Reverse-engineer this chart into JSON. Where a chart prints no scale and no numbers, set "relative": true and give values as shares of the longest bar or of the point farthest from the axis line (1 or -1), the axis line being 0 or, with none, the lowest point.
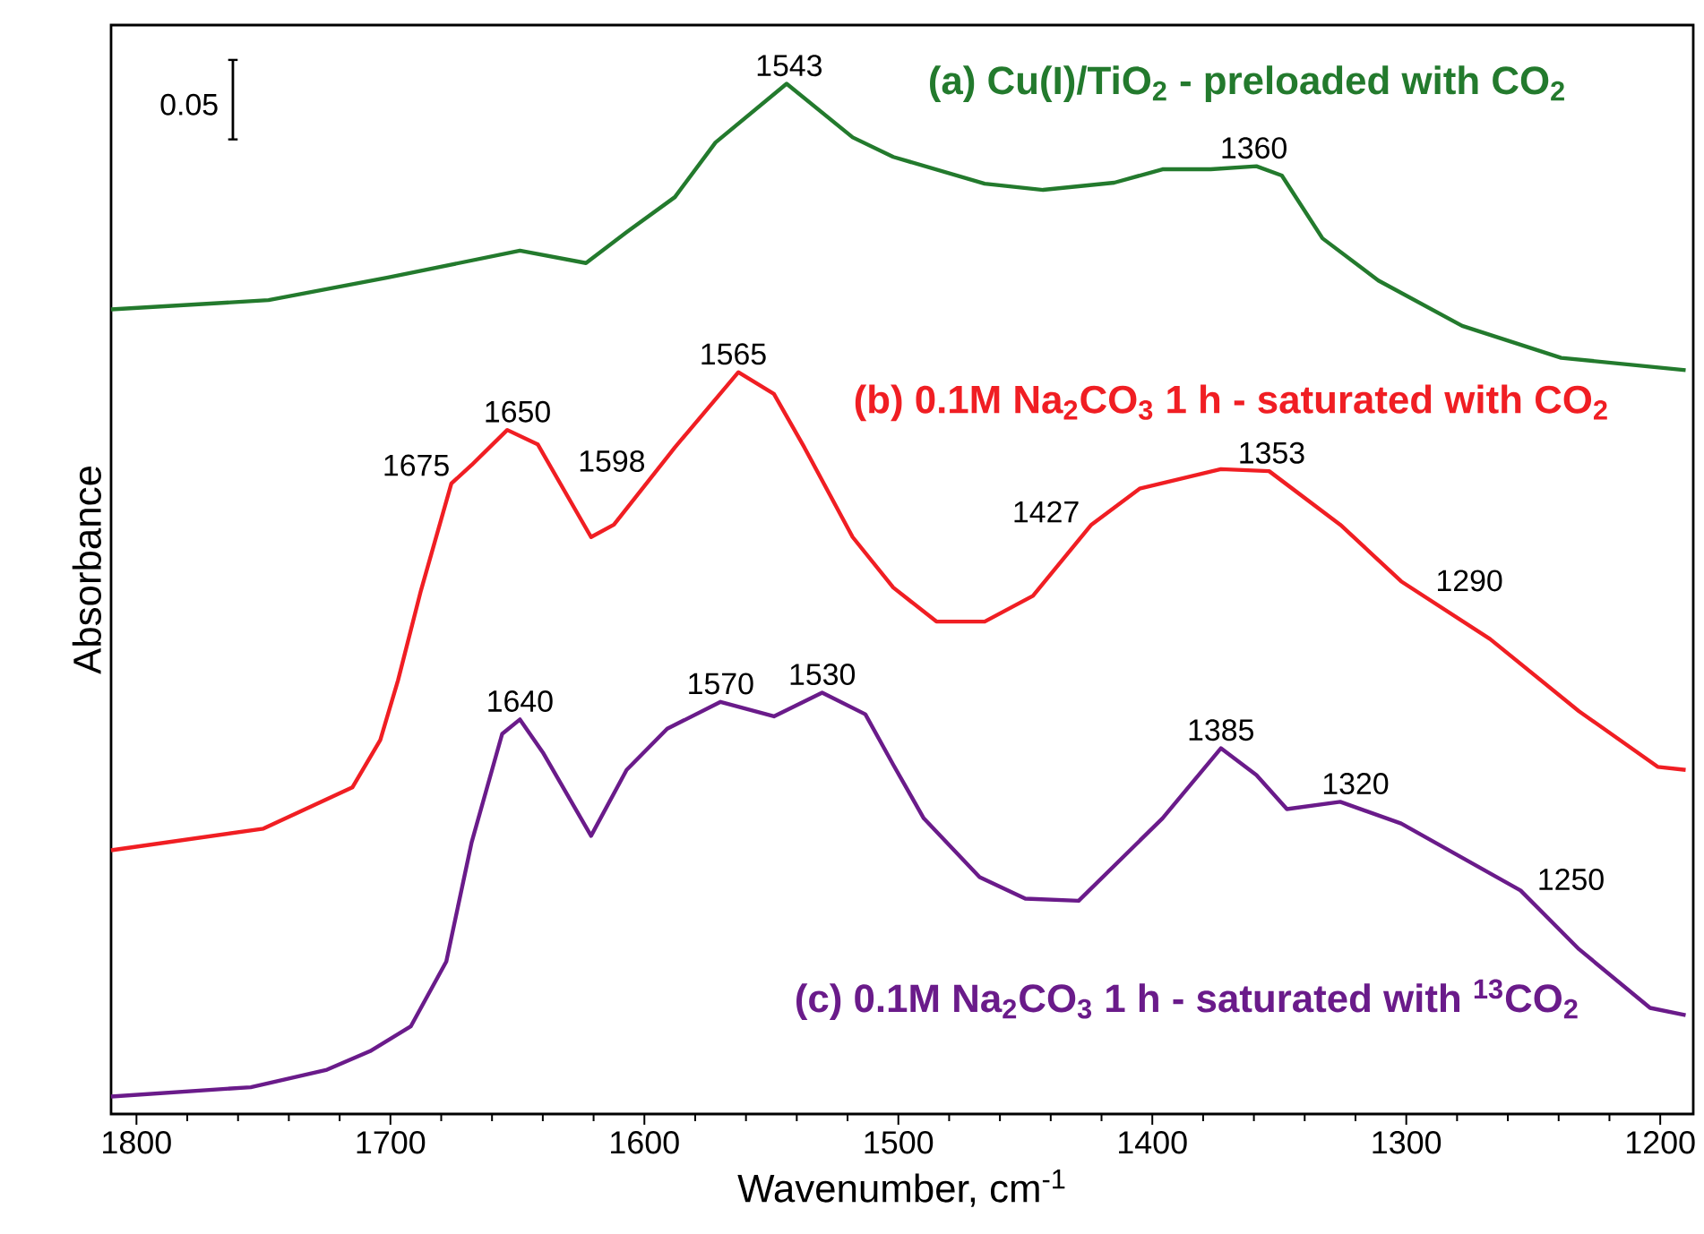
{
  "chart_data": {
    "type": "line",
    "relative": true,
    "xlabel": "Wavenumber, cm$^{-1}$",
    "ylabel": "Absorbance",
    "xlim": [
      1810,
      1187
    ],
    "xticks": [
      1800,
      1700,
      1600,
      1500,
      1400,
      1300,
      1200
    ],
    "series": [
      {
        "name": "(a) Cu(I)/TiO$_{2}$ - preloaded with CO$_{2}$",
        "color": "#237a2d",
        "x": [
          1810,
          1748,
          1701,
          1649,
          1623,
          1607,
          1588,
          1572,
          1544,
          1518,
          1502,
          1466,
          1443,
          1415,
          1396,
          1377,
          1359,
          1349,
          1333,
          1311,
          1278,
          1239,
          1190
        ],
        "values": [
          0.781,
          0.79,
          0.812,
          0.838,
          0.826,
          0.856,
          0.89,
          0.943,
          1.0,
          0.948,
          0.929,
          0.903,
          0.897,
          0.904,
          0.917,
          0.917,
          0.92,
          0.911,
          0.85,
          0.809,
          0.765,
          0.734,
          0.722
        ]
      },
      {
        "name": "(b) 0.1M Na$_{2}$CO$_{3}$ 1 h - saturated with CO$_{2}$",
        "color": "#f01e23",
        "x": [
          1810,
          1750,
          1715,
          1704,
          1697,
          1688,
          1676,
          1668,
          1654,
          1642,
          1621,
          1612,
          1588,
          1563,
          1549,
          1537,
          1518,
          1502,
          1485,
          1466,
          1447,
          1424,
          1405,
          1373,
          1354,
          1326,
          1302,
          1267,
          1232,
          1201,
          1190
        ],
        "values": [
          0.256,
          0.277,
          0.317,
          0.363,
          0.421,
          0.508,
          0.612,
          0.63,
          0.664,
          0.65,
          0.56,
          0.572,
          0.647,
          0.72,
          0.699,
          0.647,
          0.56,
          0.511,
          0.478,
          0.478,
          0.503,
          0.572,
          0.607,
          0.626,
          0.624,
          0.572,
          0.517,
          0.461,
          0.391,
          0.337,
          0.334
        ]
      },
      {
        "name": "(c) 0.1M Na$_{2}$CO$_{3}$ 1 h - saturated with $^{13}$CO$_{2}$",
        "color": "#6a1b8a",
        "x": [
          1810,
          1755,
          1725,
          1708,
          1692,
          1678,
          1668,
          1656,
          1649,
          1640,
          1621,
          1607,
          1591,
          1570,
          1549,
          1530,
          1513,
          1502,
          1490,
          1468,
          1450,
          1429,
          1396,
          1373,
          1359,
          1347,
          1326,
          1302,
          1255,
          1232,
          1204,
          1190
        ],
        "values": [
          0.017,
          0.026,
          0.043,
          0.061,
          0.085,
          0.148,
          0.264,
          0.369,
          0.383,
          0.351,
          0.27,
          0.334,
          0.374,
          0.4,
          0.386,
          0.409,
          0.388,
          0.339,
          0.287,
          0.23,
          0.209,
          0.207,
          0.287,
          0.355,
          0.329,
          0.296,
          0.303,
          0.282,
          0.217,
          0.16,
          0.103,
          0.096
        ]
      }
    ],
    "annotations": [
      {
        "text": "1543",
        "x": 1543,
        "y": 1.0
      },
      {
        "text": "1360",
        "x": 1360,
        "y": 0.92
      },
      {
        "text": "1650",
        "x": 1650,
        "y": 0.664
      },
      {
        "text": "1675",
        "x": 1675,
        "y": 0.612
      },
      {
        "text": "1598",
        "x": 1598,
        "y": 0.616
      },
      {
        "text": "1565",
        "x": 1565,
        "y": 0.72
      },
      {
        "text": "1427",
        "x": 1427,
        "y": 0.567
      },
      {
        "text": "1353",
        "x": 1353,
        "y": 0.624
      },
      {
        "text": "1290",
        "x": 1290,
        "y": 0.5
      },
      {
        "text": "1640",
        "x": 1649,
        "y": 0.383
      },
      {
        "text": "1570",
        "x": 1570,
        "y": 0.4
      },
      {
        "text": "1530",
        "x": 1530,
        "y": 0.409
      },
      {
        "text": "1385",
        "x": 1373,
        "y": 0.355
      },
      {
        "text": "1320",
        "x": 1320,
        "y": 0.303
      },
      {
        "text": "1250",
        "x": 1250,
        "y": 0.21
      },
      "0.05"
    ]
  }
}
